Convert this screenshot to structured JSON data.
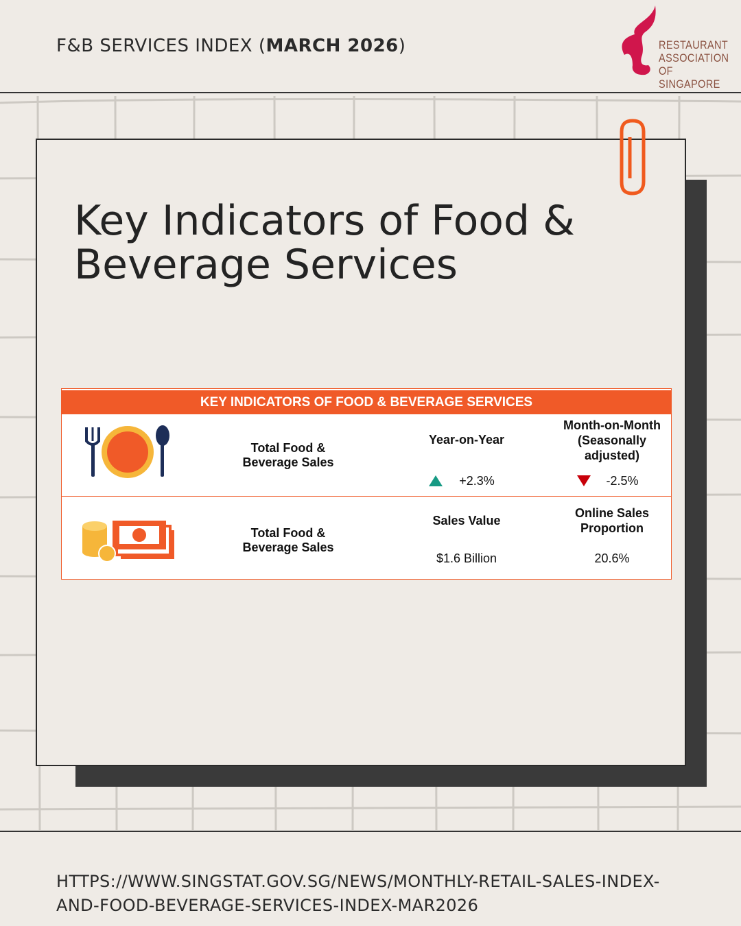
{
  "header": {
    "title_parts": [
      "F&B SERVICES INDEX (",
      "MARCH 2026",
      ")"
    ],
    "logo_lines": [
      "RESTAURANT",
      "ASSOCIATION OF",
      "SINGAPORE"
    ]
  },
  "card": {
    "title_lines": [
      "Key Indicators of Food &",
      "Beverage Services"
    ]
  },
  "table": {
    "title": "KEY INDICATORS OF FOOD & BEVERAGE SERVICES",
    "rows": [
      {
        "label": "Total Food & Beverage Sales",
        "col1_header": "Year-on-Year",
        "col1_value": "+2.3%",
        "col2_header": "Month-on-Month (Seasonally adjusted)",
        "col2_value": "-2.5%"
      },
      {
        "label": "Total Food & Beverage Sales",
        "col1_header": "Sales Value",
        "col1_value": "$1.6 Billion",
        "col2_header": "Online Sales Proportion",
        "col2_value": "20.6%"
      }
    ]
  },
  "footer": {
    "source_lines": [
      "HTTPS://WWW.SINGSTAT.GOV.SG/NEWS/MONTHLY-RETAIL-SALES-INDEX-",
      "AND-FOOD-BEVERAGE-SERVICES-INDEX-MAR2026"
    ]
  }
}
